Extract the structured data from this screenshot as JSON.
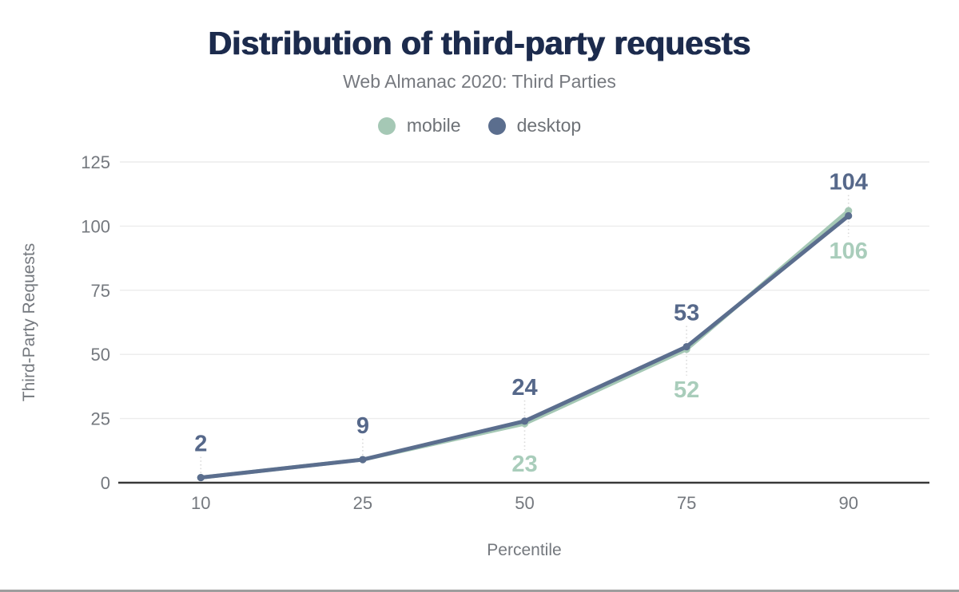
{
  "chart_data": {
    "type": "line",
    "title": "Distribution of third-party requests",
    "subtitle": "Web Almanac 2020: Third Parties",
    "xlabel": "Percentile",
    "ylabel": "Third-Party Requests",
    "categories": [
      "10",
      "25",
      "50",
      "75",
      "90"
    ],
    "yticks": [
      0,
      25,
      50,
      75,
      100,
      125
    ],
    "ylim": [
      0,
      125
    ],
    "grid": true,
    "legend_position": "top-center",
    "series": [
      {
        "name": "mobile",
        "color": "#a5c8b5",
        "label_color": "#a9cdbb",
        "values": [
          2,
          9,
          23,
          52,
          106
        ],
        "value_labels_visible": [
          false,
          false,
          true,
          true,
          true
        ]
      },
      {
        "name": "desktop",
        "color": "#5b6e8e",
        "label_color": "#56688a",
        "values": [
          2,
          9,
          24,
          53,
          104
        ],
        "value_labels_visible": [
          true,
          true,
          true,
          true,
          true
        ]
      }
    ],
    "colors": {
      "title": "#1c2b4d",
      "subtitle": "#76797f",
      "axis_text": "#74787e",
      "gridline": "#ececec",
      "axis_line": "#383838",
      "leader_line": "#d9d9d9",
      "background": "#ffffff",
      "bottom_rule": "#9e9e9e"
    }
  }
}
